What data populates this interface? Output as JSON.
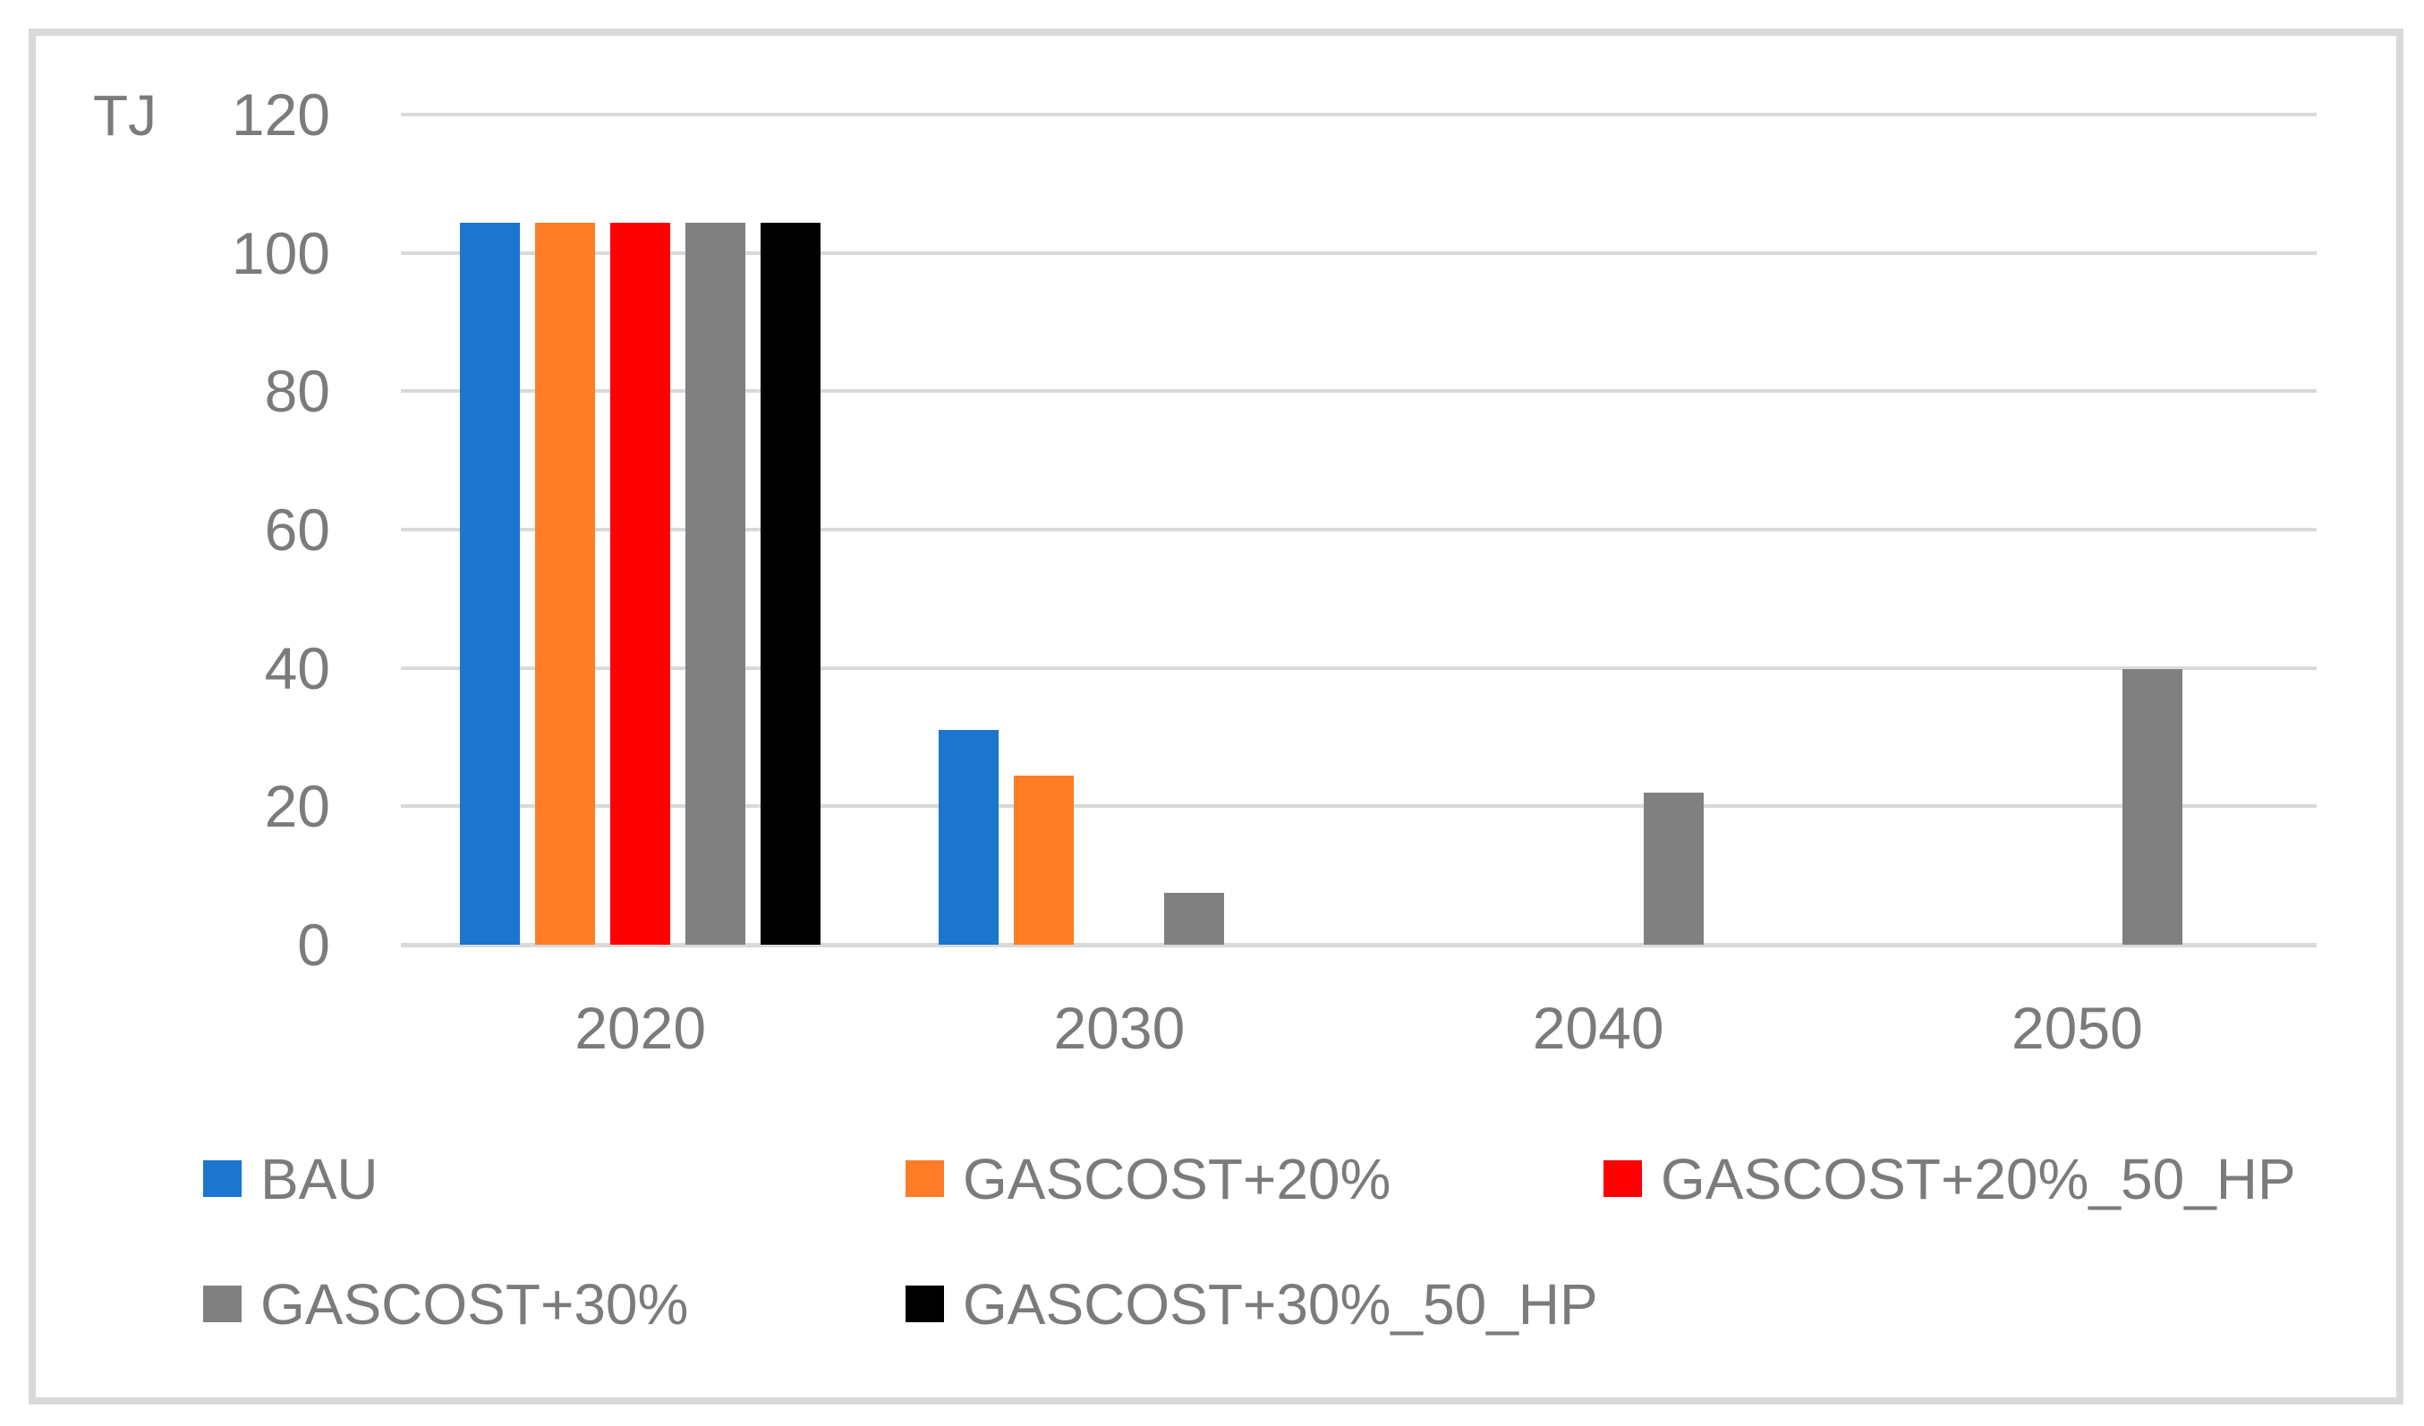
{
  "chart_data": {
    "type": "bar",
    "title": "",
    "ylabel": "TJ",
    "xlabel": "",
    "categories": [
      "2020",
      "2030",
      "2040",
      "2050"
    ],
    "series": [
      {
        "name": "BAU",
        "color": "#1C75CE",
        "values": [
          104.4,
          31,
          0,
          0
        ]
      },
      {
        "name": "GASCOST+20%",
        "color": "#FE7D27",
        "values": [
          104.4,
          24.5,
          0,
          0
        ]
      },
      {
        "name": "GASCOST+20%_50_HP",
        "color": "#FF0000",
        "values": [
          104.4,
          0,
          0,
          0
        ]
      },
      {
        "name": "GASCOST+30%",
        "color": "#808080",
        "values": [
          104.4,
          7.5,
          22,
          39.8
        ]
      },
      {
        "name": "GASCOST+30%_50_HP",
        "color": "#000000",
        "values": [
          104.4,
          0,
          0,
          0
        ]
      }
    ],
    "ylim": [
      0,
      120
    ],
    "yticks": [
      0,
      20,
      40,
      60,
      80,
      100,
      120
    ],
    "grid": true,
    "gridline_color": "#D9D9D9",
    "frame_color": "#D9D9D9",
    "axis_text_color": "#7B7B7B",
    "background_color": "#FFFFFF",
    "legend_position": "bottom"
  }
}
